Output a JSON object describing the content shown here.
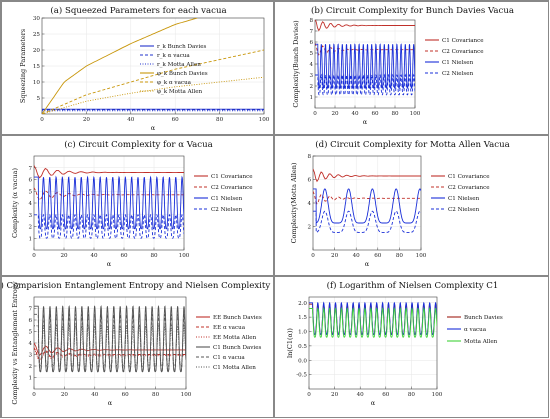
{
  "panels": [
    {
      "id": "a",
      "title": "(a) Squeezed Parameters for each vacua",
      "ylabel": "Squeezing Parameters",
      "xlabel": "α",
      "xlim": [
        0,
        100
      ],
      "ylim": [
        0,
        30
      ],
      "xticks": [
        0,
        20,
        40,
        60,
        80,
        100
      ],
      "yticks": [
        5,
        10,
        15,
        20,
        25,
        30
      ],
      "legend": [
        {
          "label": "r_k Bunch Davies",
          "color": "#2233cc",
          "dash": "solid"
        },
        {
          "label": "r_k α vacua",
          "color": "#2233cc",
          "dash": "dash"
        },
        {
          "label": "r_k Motta Allen",
          "color": "#2233cc",
          "dash": "dot"
        },
        {
          "label": "φ_k Bunch Davies",
          "color": "#c8960a",
          "dash": "solid"
        },
        {
          "label": "φ_k α vacua",
          "color": "#c8960a",
          "dash": "dash"
        },
        {
          "label": "φ_k Motta Allen",
          "color": "#c8960a",
          "dash": "dot"
        }
      ]
    },
    {
      "id": "b",
      "title": "(b) Circuit Complexity for Bunch Davies Vacua",
      "ylabel": "Complexity(Bunch Davies)",
      "xlabel": "α",
      "xlim": [
        0,
        100
      ],
      "ylim": [
        0,
        8
      ],
      "xticks": [
        0,
        20,
        40,
        60,
        80,
        100
      ],
      "yticks": [
        1,
        2,
        3,
        4,
        5,
        6,
        7,
        8
      ],
      "legend": [
        {
          "label": "C1 Covariance",
          "color": "#c0302a",
          "dash": "solid"
        },
        {
          "label": "C2 Covariance",
          "color": "#c0302a",
          "dash": "dash"
        },
        {
          "label": "C1 Nielsen",
          "color": "#1a2fd8",
          "dash": "solid"
        },
        {
          "label": "C2 Nielsen",
          "color": "#1a2fd8",
          "dash": "dash"
        }
      ]
    },
    {
      "id": "c",
      "title": "(c) Circuit Complexity for α Vacua",
      "ylabel": "Complexity (α vacua)",
      "xlabel": "α",
      "xlim": [
        0,
        100
      ],
      "ylim": [
        0,
        8
      ],
      "xticks": [
        0,
        20,
        40,
        60,
        80,
        100
      ],
      "yticks": [
        1,
        2,
        3,
        4,
        5,
        6,
        7
      ],
      "legend": [
        {
          "label": "C1 Covariance",
          "color": "#c0302a",
          "dash": "solid"
        },
        {
          "label": "C2 Covariance",
          "color": "#c0302a",
          "dash": "dash"
        },
        {
          "label": "C1 Nielsen",
          "color": "#1a2fd8",
          "dash": "solid"
        },
        {
          "label": "C2 Nielsen",
          "color": "#1a2fd8",
          "dash": "dash"
        }
      ]
    },
    {
      "id": "d",
      "title": "(d) Circuit Complexity for Motta Allen Vacua",
      "ylabel": "Complexity(Motta Allen)",
      "xlabel": "α",
      "xlim": [
        0,
        100
      ],
      "ylim": [
        0,
        8
      ],
      "xticks": [
        0,
        20,
        40,
        60,
        80,
        100
      ],
      "yticks": [
        2,
        4,
        6,
        8
      ],
      "legend": [
        {
          "label": "C1 Covariance",
          "color": "#c0302a",
          "dash": "solid"
        },
        {
          "label": "C2 Covariance",
          "color": "#c0302a",
          "dash": "dash"
        },
        {
          "label": "C1 Nielsen",
          "color": "#1a2fd8",
          "dash": "solid"
        },
        {
          "label": "C2 Nielsen",
          "color": "#1a2fd8",
          "dash": "dash"
        }
      ]
    },
    {
      "id": "e",
      "title": "(e) Comparision Entanglement Entropy and Nielsen Complexity C1",
      "ylabel": "Complexity vs Entanglement Entropy",
      "xlabel": "α",
      "xlim": [
        0,
        100
      ],
      "ylim": [
        0,
        8
      ],
      "xticks": [
        0,
        20,
        40,
        60,
        80,
        100
      ],
      "yticks": [
        1,
        2,
        3,
        4,
        5,
        6,
        7
      ],
      "legend": [
        {
          "label": "EE Bunch Davies",
          "color": "#c0302a",
          "dash": "solid"
        },
        {
          "label": "EE α vacua",
          "color": "#c0302a",
          "dash": "dash"
        },
        {
          "label": "EE Motta Allen",
          "color": "#c0302a",
          "dash": "dot"
        },
        {
          "label": "C1 Bunch Davies",
          "color": "#555555",
          "dash": "solid"
        },
        {
          "label": "C1 α vacua",
          "color": "#555555",
          "dash": "dash"
        },
        {
          "label": "C1 Motta Allen",
          "color": "#555555",
          "dash": "dot"
        }
      ]
    },
    {
      "id": "f",
      "title": "(f) Logarithm of Nielsen Complexity C1",
      "ylabel": "ln(C1(α))",
      "xlabel": "α",
      "xlim": [
        0,
        100
      ],
      "ylim": [
        -1.0,
        2.2
      ],
      "xticks": [
        0,
        20,
        40,
        60,
        80,
        100
      ],
      "yticks": [
        -0.5,
        0.0,
        0.5,
        1.0,
        1.5,
        2.0
      ],
      "yticklabels": [
        "-0.5",
        "0.0",
        "0.5",
        "1.0",
        "1.5",
        "2.0"
      ],
      "legend": [
        {
          "label": "Bunch Davies",
          "color": "#a01e16",
          "dash": "solid"
        },
        {
          "label": "α vacua",
          "color": "#1a2fd8",
          "dash": "solid"
        },
        {
          "label": "Motta Allen",
          "color": "#3fd23a",
          "dash": "solid"
        }
      ]
    }
  ],
  "chart_data": [
    {
      "type": "line",
      "title": "(a) Squeezed Parameters for each vacua",
      "xlabel": "α",
      "ylabel": "Squeezing Parameters",
      "xlim": [
        0,
        100
      ],
      "ylim": [
        0,
        30
      ],
      "series": [
        {
          "name": "r_k Bunch Davies",
          "x": [
            0,
            100
          ],
          "y": [
            1.5,
            1.5
          ]
        },
        {
          "name": "r_k α vacua",
          "x": [
            0,
            100
          ],
          "y": [
            1.3,
            1.3
          ]
        },
        {
          "name": "r_k Motta Allen",
          "x": [
            0,
            100
          ],
          "y": [
            1.0,
            1.0
          ]
        },
        {
          "name": "φ_k Bunch Davies",
          "x": [
            0,
            10,
            20,
            40,
            60,
            70
          ],
          "y": [
            0,
            10,
            15,
            22,
            28,
            30
          ]
        },
        {
          "name": "φ_k α vacua",
          "x": [
            0,
            20,
            40,
            60,
            80,
            100
          ],
          "y": [
            0,
            6,
            10,
            14,
            17,
            20
          ]
        },
        {
          "name": "φ_k Motta Allen",
          "x": [
            0,
            20,
            40,
            60,
            80,
            100
          ],
          "y": [
            0,
            4,
            6.5,
            8.5,
            10,
            11.5
          ]
        }
      ]
    },
    {
      "type": "line",
      "title": "(b) Circuit Complexity for Bunch Davies Vacua",
      "xlabel": "α",
      "ylabel": "Complexity(Bunch Davies)",
      "xlim": [
        0,
        100
      ],
      "ylim": [
        0,
        8
      ],
      "series": [
        {
          "name": "C1 Covariance",
          "x": [
            0,
            100
          ],
          "y": [
            7.5,
            7.5
          ]
        },
        {
          "name": "C2 Covariance",
          "x": [
            0,
            100
          ],
          "y": [
            5.3,
            5.3
          ]
        },
        {
          "name": "C1 Nielsen",
          "x": [
            0,
            100
          ],
          "y_range": [
            1.8,
            5.8
          ]
        },
        {
          "name": "C2 Nielsen",
          "x": [
            0,
            100
          ],
          "y_range": [
            1.2,
            3.0
          ]
        }
      ]
    },
    {
      "type": "line",
      "title": "(c) Circuit Complexity for α Vacua",
      "xlabel": "α",
      "ylabel": "Complexity (α vacua)",
      "xlim": [
        0,
        100
      ],
      "ylim": [
        0,
        8
      ],
      "series": [
        {
          "name": "C1 Covariance",
          "x": [
            0,
            100
          ],
          "y": [
            6.6,
            6.6
          ]
        },
        {
          "name": "C2 Covariance",
          "x": [
            0,
            100
          ],
          "y": [
            4.7,
            4.7
          ]
        },
        {
          "name": "C1 Nielsen",
          "x": [
            0,
            100
          ],
          "y_range": [
            1.8,
            6.2
          ]
        },
        {
          "name": "C2 Nielsen",
          "x": [
            0,
            100
          ],
          "y_range": [
            1.0,
            3.0
          ]
        }
      ]
    },
    {
      "type": "line",
      "title": "(d) Circuit Complexity for Motta Allen Vacua",
      "xlabel": "α",
      "ylabel": "Complexity(Motta Allen)",
      "xlim": [
        0,
        100
      ],
      "ylim": [
        0,
        8
      ],
      "series": [
        {
          "name": "C1 Covariance",
          "x": [
            0,
            100
          ],
          "y": [
            6.3,
            6.3
          ]
        },
        {
          "name": "C2 Covariance",
          "x": [
            0,
            100
          ],
          "y": [
            4.4,
            4.4
          ]
        },
        {
          "name": "C1 Nielsen",
          "x": [
            0,
            100
          ],
          "y_range": [
            2.3,
            5.2
          ]
        },
        {
          "name": "C2 Nielsen",
          "x": [
            0,
            100
          ],
          "y_range": [
            1.5,
            3.3
          ]
        }
      ]
    },
    {
      "type": "line",
      "title": "(e) Comparision Entanglement Entropy and Nielsen Complexity C1",
      "xlabel": "α",
      "ylabel": "Complexity vs Entanglement Entropy",
      "xlim": [
        0,
        100
      ],
      "ylim": [
        0,
        8
      ],
      "series": [
        {
          "name": "EE Bunch Davies",
          "x": [
            0,
            100
          ],
          "y": [
            3.4,
            3.4
          ]
        },
        {
          "name": "EE α vacua",
          "x": [
            0,
            100
          ],
          "y": [
            3.0,
            3.0
          ]
        },
        {
          "name": "EE Motta Allen",
          "x": [
            0,
            100
          ],
          "y": [
            2.9,
            2.9
          ]
        },
        {
          "name": "C1 Bunch Davies",
          "x": [
            0,
            100
          ],
          "y_range": [
            1.5,
            7.2
          ]
        },
        {
          "name": "C1 α vacua",
          "x": [
            0,
            100
          ],
          "y_range": [
            1.5,
            6.5
          ]
        },
        {
          "name": "C1 Motta Allen",
          "x": [
            0,
            100
          ],
          "y_range": [
            2.0,
            5.5
          ]
        }
      ]
    },
    {
      "type": "line",
      "title": "(f) Logarithm of Nielsen Complexity C1",
      "xlabel": "α",
      "ylabel": "ln(C1(α))",
      "xlim": [
        0,
        100
      ],
      "ylim": [
        -1.0,
        2.2
      ],
      "series": [
        {
          "name": "Bunch Davies",
          "x": [
            0,
            100
          ],
          "y_range": [
            0.9,
            1.95
          ]
        },
        {
          "name": "α vacua",
          "x": [
            0,
            100
          ],
          "y_range": [
            0.9,
            2.0
          ]
        },
        {
          "name": "Motta Allen",
          "x": [
            0,
            100
          ],
          "y_range": [
            0.8,
            1.8
          ]
        }
      ]
    }
  ]
}
